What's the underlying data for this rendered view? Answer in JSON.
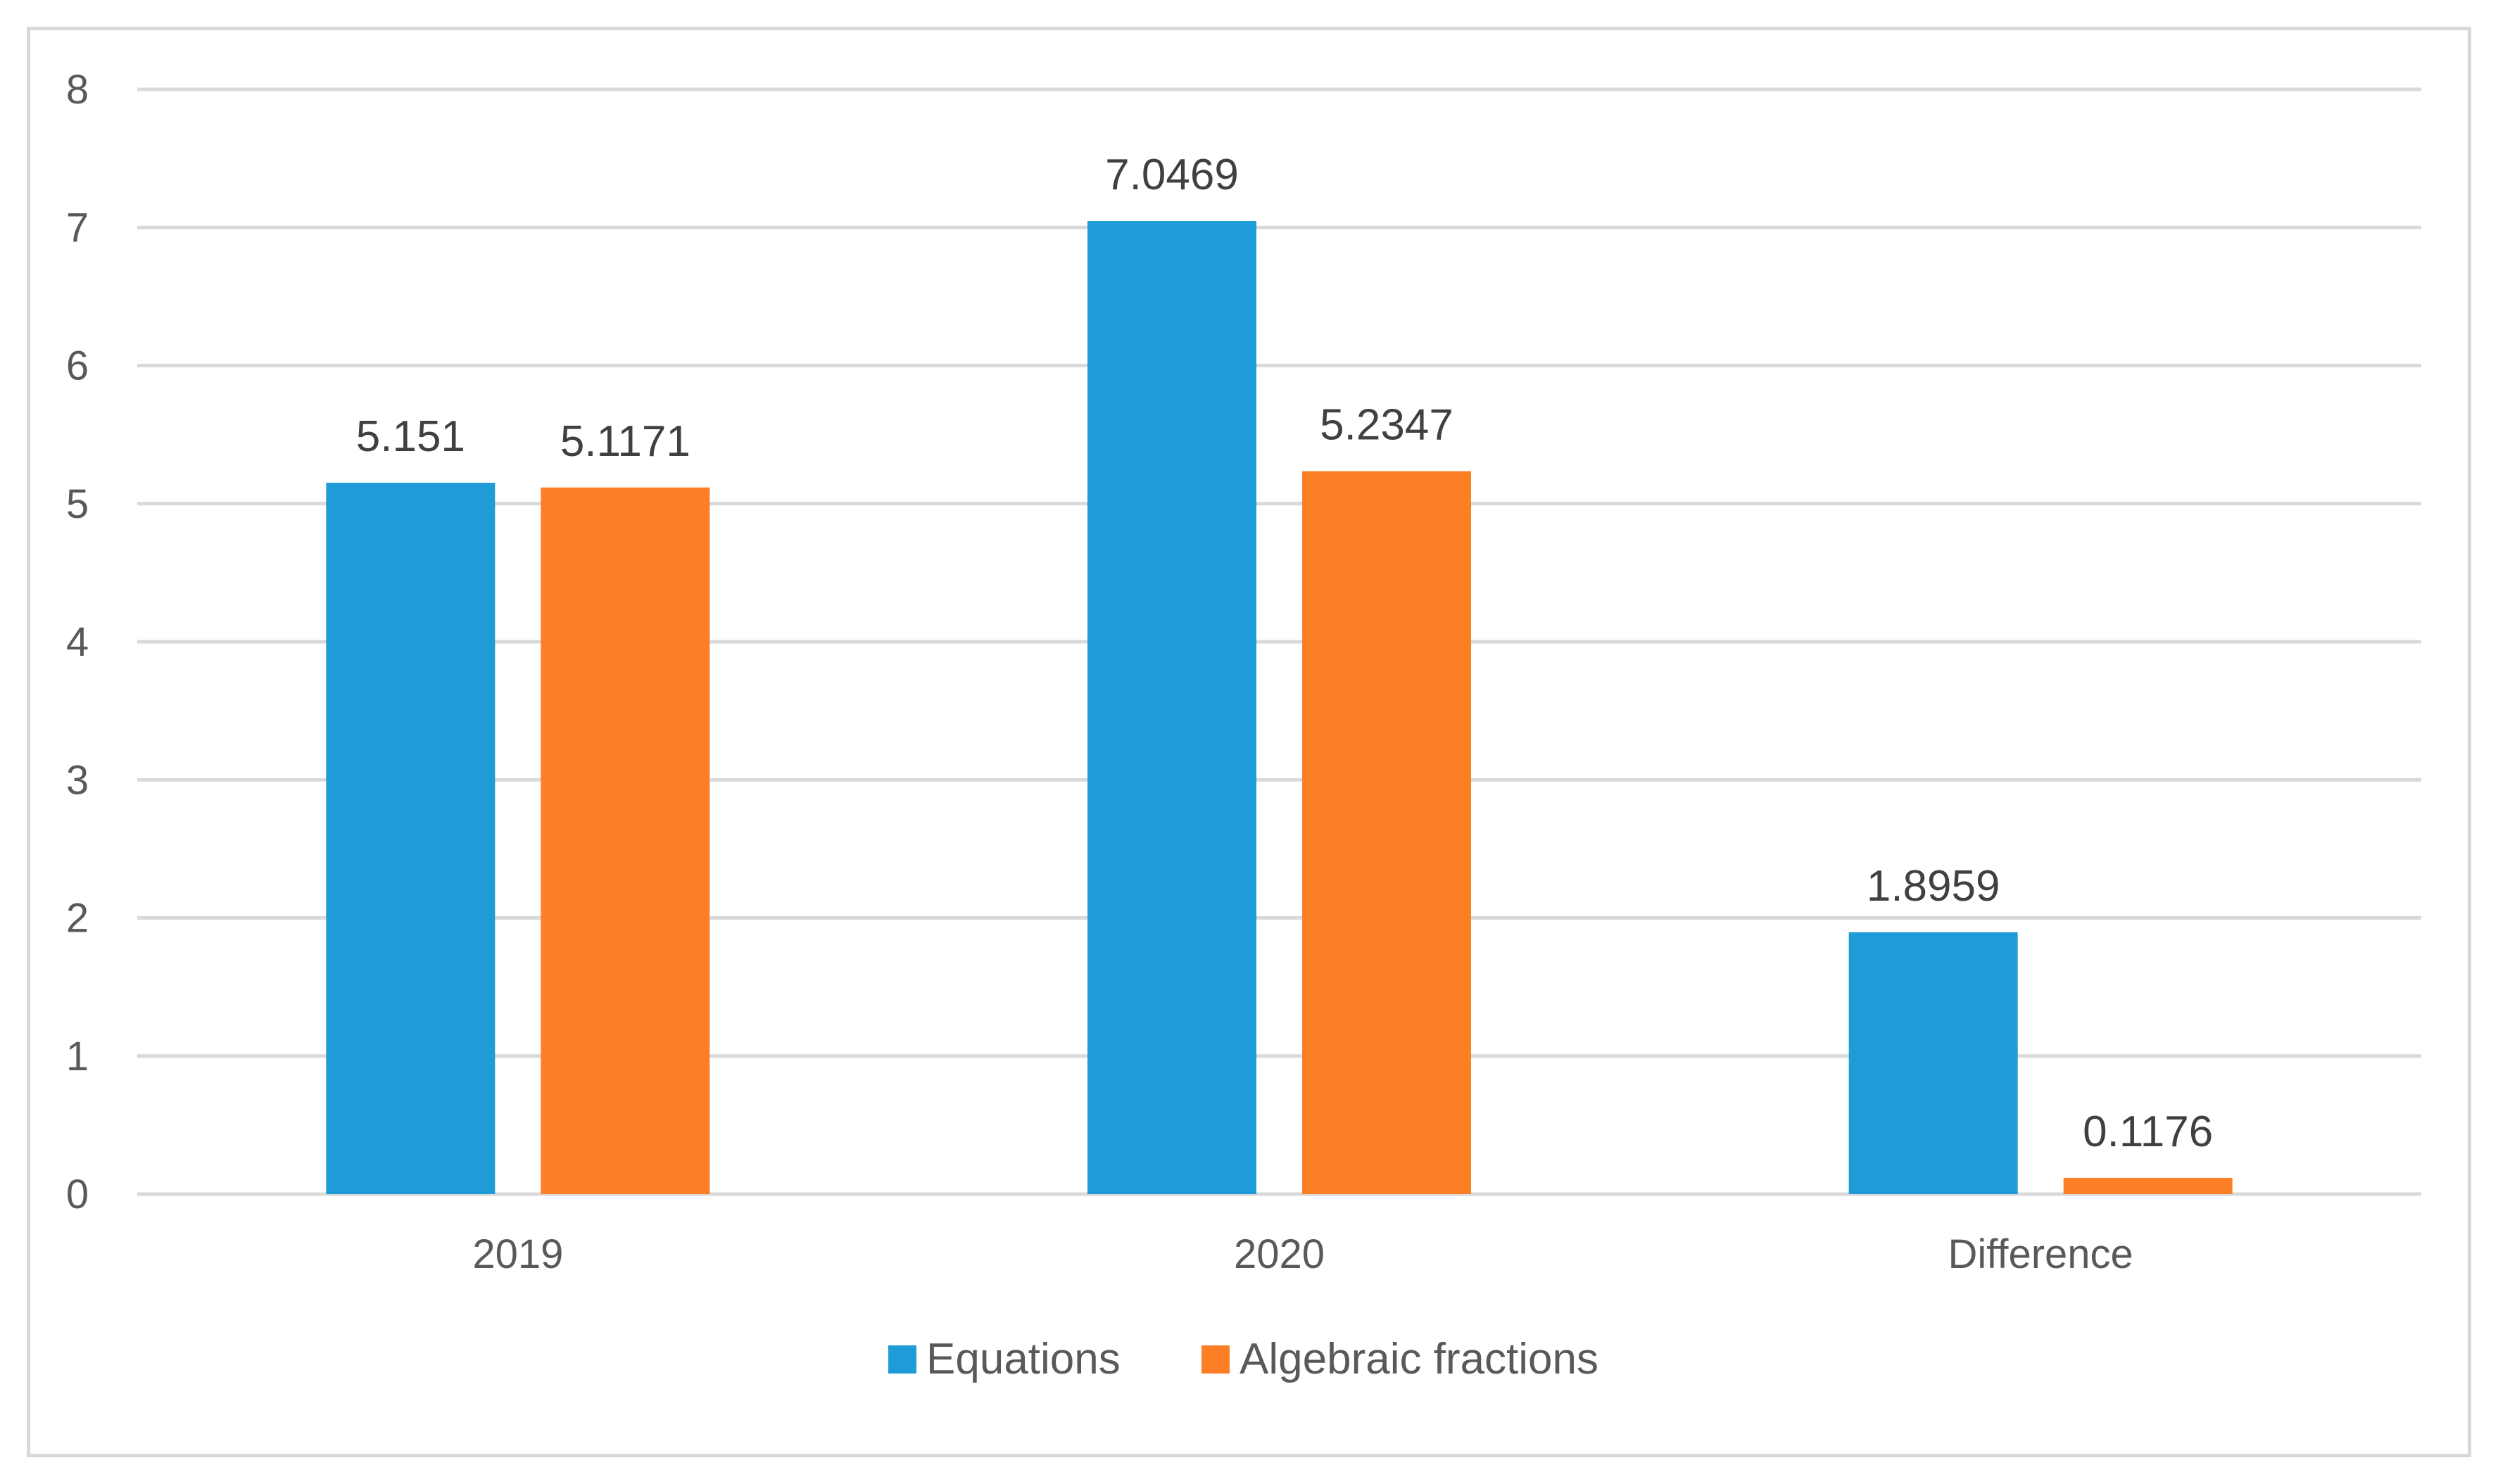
{
  "chart_data": {
    "type": "bar",
    "title": "",
    "xlabel": "",
    "ylabel": "",
    "categories": [
      "2019",
      "2020",
      "Difference"
    ],
    "series": [
      {
        "name": "Equations",
        "color": "#1f9bd7",
        "values": [
          5.151,
          7.0469,
          1.8959
        ],
        "labels": [
          "5.151",
          "7.0469",
          "1.8959"
        ]
      },
      {
        "name": "Algebraic fractions",
        "color": "#fd7f25",
        "values": [
          5.1171,
          5.2347,
          0.1176
        ],
        "labels": [
          "5.1171",
          "5.2347",
          "0.1176"
        ]
      }
    ],
    "ylim": [
      0,
      8
    ],
    "yticks": [
      0,
      1,
      2,
      3,
      4,
      5,
      6,
      7,
      8
    ],
    "grid": true,
    "gridline_color": "#d9d9d9",
    "legend_position": "bottom"
  }
}
